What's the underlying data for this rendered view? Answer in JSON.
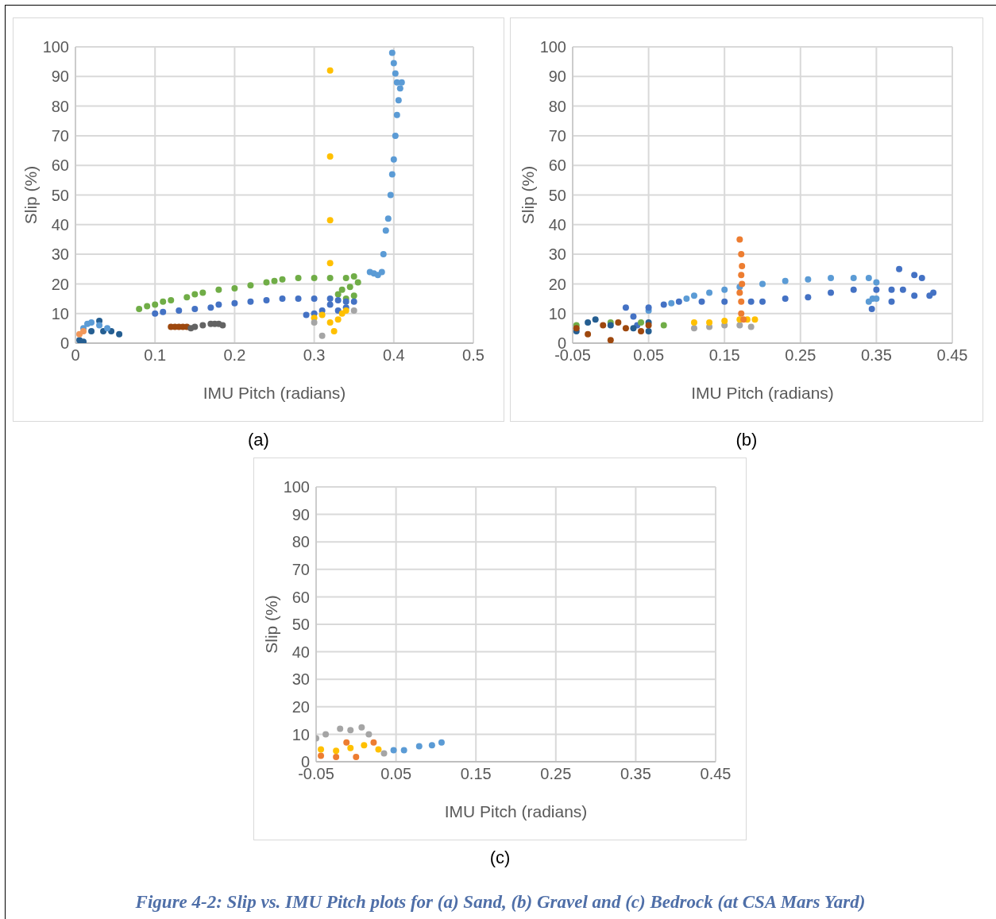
{
  "chart_data": [
    {
      "type": "scatter",
      "xlabel": "IMU Pitch (radians)",
      "ylabel": "Slip (%)",
      "xlim": [
        0,
        0.5
      ],
      "xticks": [
        0,
        0.1,
        0.2,
        0.3,
        0.4,
        0.5
      ],
      "ylim": [
        0,
        100
      ],
      "yticks": [
        0,
        10,
        20,
        30,
        40,
        50,
        60,
        70,
        80,
        90,
        100
      ],
      "grid": true,
      "marker": "circle",
      "annotations": [
        "(a)"
      ],
      "series": [
        {
          "color": "#70ad47",
          "x": [
            0.08,
            0.09,
            0.1,
            0.11,
            0.12,
            0.14,
            0.15,
            0.16,
            0.18,
            0.2,
            0.22,
            0.24,
            0.25,
            0.26,
            0.28,
            0.3,
            0.32,
            0.34,
            0.35,
            0.355,
            0.345,
            0.335,
            0.33,
            0.34,
            0.35
          ],
          "values": [
            11.5,
            12.5,
            13,
            14,
            14.5,
            15.5,
            16.5,
            17,
            18,
            18.5,
            19.5,
            20.5,
            21,
            21.5,
            22,
            22,
            22,
            22,
            22.5,
            20.5,
            19,
            18,
            16.5,
            15,
            16
          ]
        },
        {
          "color": "#4472c4",
          "x": [
            0.1,
            0.11,
            0.13,
            0.15,
            0.17,
            0.18,
            0.2,
            0.22,
            0.24,
            0.26,
            0.28,
            0.3,
            0.32,
            0.33,
            0.34,
            0.29,
            0.3,
            0.31,
            0.32,
            0.33,
            0.34,
            0.35
          ],
          "values": [
            10,
            10.5,
            11,
            11.5,
            12,
            13,
            13.5,
            14,
            14.5,
            15,
            15,
            15,
            15,
            14.5,
            14,
            9.5,
            10,
            11,
            13,
            11,
            12,
            14
          ]
        },
        {
          "color": "#ffc000",
          "x": [
            0.32,
            0.32,
            0.32,
            0.32,
            0.3,
            0.31,
            0.32,
            0.325,
            0.33,
            0.335,
            0.34
          ],
          "values": [
            92,
            63,
            41.5,
            27,
            8.5,
            9.5,
            7,
            4,
            8,
            10,
            11
          ]
        },
        {
          "color": "#a5a5a5",
          "x": [
            0.31,
            0.3,
            0.35
          ],
          "values": [
            2.5,
            7,
            11
          ]
        },
        {
          "color": "#9e480e",
          "x": [
            0.12,
            0.125,
            0.13,
            0.135,
            0.14
          ],
          "values": [
            5.5,
            5.5,
            5.5,
            5.5,
            5.5
          ]
        },
        {
          "color": "#636363",
          "x": [
            0.145,
            0.15,
            0.16,
            0.17,
            0.175,
            0.18,
            0.185
          ],
          "values": [
            5,
            5.5,
            6,
            6.5,
            6.5,
            6.5,
            6
          ]
        },
        {
          "color": "#255e91",
          "x": [
            0.005,
            0.01,
            0.02,
            0.03,
            0.035,
            0.045,
            0.055
          ],
          "values": [
            1,
            0.5,
            4,
            7.5,
            4,
            4,
            3
          ]
        },
        {
          "color": "#5b9bd5",
          "x": [
            0.01,
            0.015,
            0.02,
            0.03,
            0.04,
            0.37,
            0.375,
            0.38,
            0.385,
            0.387,
            0.39,
            0.393,
            0.396,
            0.398,
            0.4,
            0.402,
            0.404,
            0.406,
            0.408,
            0.41,
            0.404,
            0.402,
            0.4,
            0.398
          ],
          "values": [
            5,
            6.5,
            7,
            6,
            5,
            24,
            23.5,
            23,
            24,
            30,
            38,
            42,
            50,
            57,
            62,
            70,
            77,
            82,
            86,
            88,
            88,
            91,
            94.5,
            98
          ]
        },
        {
          "color": "#f1975a",
          "x": [
            0.005,
            0.01
          ],
          "values": [
            3,
            4
          ]
        }
      ]
    },
    {
      "type": "scatter",
      "xlabel": "IMU Pitch (radians)",
      "ylabel": "Slip (%)",
      "xlim": [
        -0.05,
        0.45
      ],
      "xticks": [
        -0.05,
        0.05,
        0.15,
        0.25,
        0.35,
        0.45
      ],
      "ylim": [
        0,
        100
      ],
      "yticks": [
        0,
        10,
        20,
        30,
        40,
        50,
        60,
        70,
        80,
        90,
        100
      ],
      "grid": true,
      "marker": "circle",
      "annotations": [
        "(b)"
      ],
      "series": [
        {
          "color": "#5b9bd5",
          "x": [
            0.05,
            0.08,
            0.1,
            0.11,
            0.13,
            0.15,
            0.17,
            0.2,
            0.23,
            0.26,
            0.29,
            0.32,
            0.34,
            0.35,
            0.345,
            0.34,
            0.35
          ],
          "values": [
            11,
            13.5,
            15,
            16,
            17,
            18,
            19,
            20,
            21,
            21.5,
            22,
            22,
            22,
            20.5,
            15,
            14,
            15
          ]
        },
        {
          "color": "#4472c4",
          "x": [
            0.02,
            0.03,
            0.035,
            0.05,
            0.07,
            0.09,
            0.12,
            0.15,
            0.185,
            0.2,
            0.23,
            0.26,
            0.29,
            0.32,
            0.35,
            0.37,
            0.38,
            0.4,
            0.41,
            0.425,
            0.42,
            0.4,
            0.385,
            0.37,
            0.344
          ],
          "values": [
            12,
            9,
            6,
            12,
            13,
            14,
            14,
            14,
            14,
            14,
            15,
            15.5,
            17,
            18,
            18,
            18,
            25,
            23,
            22,
            17,
            16,
            16,
            18,
            14,
            11.5
          ]
        },
        {
          "color": "#a5a5a5",
          "x": [
            0.11,
            0.13,
            0.15,
            0.17,
            0.185
          ],
          "values": [
            5,
            5.5,
            6,
            6,
            5.5
          ]
        },
        {
          "color": "#ffc000",
          "x": [
            0.11,
            0.13,
            0.15,
            0.17,
            0.18,
            0.19
          ],
          "values": [
            7,
            7,
            7.5,
            8,
            8,
            8
          ]
        },
        {
          "color": "#ed7d31",
          "x": [
            0.17,
            0.172,
            0.173,
            0.172,
            0.173,
            0.17,
            0.172,
            0.172,
            0.175
          ],
          "values": [
            35,
            30,
            26,
            23,
            20,
            17,
            14,
            10,
            8
          ]
        },
        {
          "color": "#70ad47",
          "x": [
            -0.045,
            0.0,
            0.04,
            0.07
          ],
          "values": [
            6,
            7,
            7,
            6
          ]
        },
        {
          "color": "#255e91",
          "x": [
            -0.045,
            -0.03,
            -0.02,
            0.0,
            0.03,
            0.05,
            0.05
          ],
          "values": [
            4,
            7,
            8,
            6,
            5,
            4,
            7
          ]
        },
        {
          "color": "#9e480e",
          "x": [
            -0.045,
            -0.03,
            -0.01,
            0.0,
            0.01,
            0.02,
            0.04,
            0.05
          ],
          "values": [
            5,
            3,
            6,
            1,
            7,
            5,
            4,
            6
          ]
        }
      ]
    },
    {
      "type": "scatter",
      "xlabel": "IMU Pitch (radians)",
      "ylabel": "Slip (%)",
      "xlim": [
        -0.05,
        0.45
      ],
      "xticks": [
        -0.05,
        0.05,
        0.15,
        0.25,
        0.35,
        0.45
      ],
      "ylim": [
        0,
        100
      ],
      "yticks": [
        0,
        10,
        20,
        30,
        40,
        50,
        60,
        70,
        80,
        90,
        100
      ],
      "grid": true,
      "marker": "circle",
      "annotations": [
        "(c)",
        "Figure 4-2: Slip vs. IMU Pitch plots for (a) Sand, (b) Gravel and (c) Bedrock (at CSA Mars Yard)"
      ],
      "series": [
        {
          "color": "#a5a5a5",
          "x": [
            -0.05,
            -0.038,
            -0.02,
            -0.007,
            0.007,
            0.016,
            0.035
          ],
          "values": [
            8.5,
            10,
            12,
            11.5,
            12.5,
            10,
            3
          ]
        },
        {
          "color": "#ed7d31",
          "x": [
            -0.044,
            -0.025,
            -0.012,
            0.0,
            0.022
          ],
          "values": [
            2.2,
            1.7,
            7,
            1.7,
            7
          ]
        },
        {
          "color": "#ffc000",
          "x": [
            -0.044,
            -0.025,
            -0.007,
            0.01,
            0.028
          ],
          "values": [
            4.5,
            4,
            5,
            6,
            4.5
          ]
        },
        {
          "color": "#5b9bd5",
          "x": [
            0.047,
            0.06,
            0.079,
            0.095,
            0.107
          ],
          "values": [
            4.2,
            4.2,
            5.6,
            6,
            7
          ]
        }
      ]
    }
  ]
}
